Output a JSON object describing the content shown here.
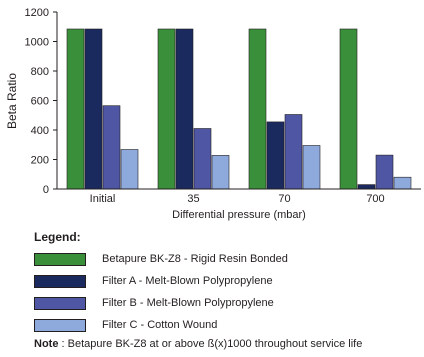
{
  "chart_data": {
    "type": "bar",
    "title": "",
    "xlabel": "Differential pressure (mbar)",
    "ylabel": "Beta Ratio",
    "ylim": [
      0,
      1200
    ],
    "yticks": [
      "0",
      "200",
      "400",
      "600",
      "800",
      "1000",
      "1200"
    ],
    "categories": [
      "Initial",
      "35",
      "70",
      "700"
    ],
    "series": [
      {
        "name": "Betapure BK-Z8 - Rigid Resin Bonded",
        "color": "#3a8f3a",
        "values": [
          1085,
          1085,
          1085,
          1085
        ]
      },
      {
        "name": "Filter A - Melt-Blown Polypropylene",
        "color": "#1a2a5e",
        "values": [
          1085,
          1085,
          455,
          30
        ]
      },
      {
        "name": "Filter B - Melt-Blown Polypropylene",
        "color": "#4f56a3",
        "values": [
          565,
          410,
          505,
          230
        ]
      },
      {
        "name": "Filter C - Cotton Wound",
        "color": "#8ea9db",
        "values": [
          268,
          228,
          295,
          80
        ]
      }
    ],
    "grid": false,
    "legend_position": "bottom"
  },
  "legend": {
    "title": "Legend:",
    "items": [
      {
        "label": "Betapure BK-Z8 - Rigid Resin Bonded",
        "color": "#3a8f3a"
      },
      {
        "label": "Filter A - Melt-Blown Polypropylene",
        "color": "#1a2a5e"
      },
      {
        "label": "Filter B - Melt-Blown Polypropylene",
        "color": "#4f56a3"
      },
      {
        "label": "Filter C - Cotton Wound",
        "color": "#8ea9db"
      }
    ]
  },
  "note": {
    "prefix": "Note",
    "text": " : Betapure BK-Z8 at or above ß(x)1000 throughout service life"
  }
}
